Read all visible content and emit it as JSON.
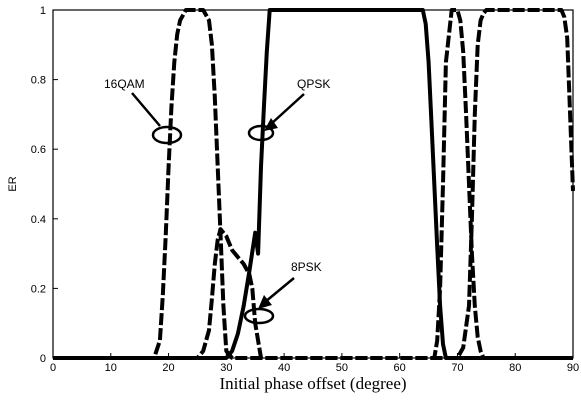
{
  "chart_data": {
    "type": "line",
    "title": "",
    "xlabel": "Initial phase offset (degree)",
    "ylabel": "ER",
    "xlim": [
      0,
      90
    ],
    "ylim": [
      0,
      1
    ],
    "xticks": [
      "0",
      "10",
      "20",
      "30",
      "40",
      "50",
      "60",
      "70",
      "80",
      "90"
    ],
    "yticks": [
      "0",
      "0.2",
      "0.4",
      "0.6",
      "0.8",
      "1"
    ],
    "grid": false,
    "legend": "none",
    "annotations": [
      {
        "text": "16QAM",
        "x": 20,
        "y": 0.65
      },
      {
        "text": "QPSK",
        "x": 36,
        "y": 0.65
      },
      {
        "text": "8PSK",
        "x": 33,
        "y": 0.12
      }
    ],
    "series": [
      {
        "style": "dashed",
        "x": [
          0,
          17.5,
          18.5,
          19,
          19.5,
          20,
          20.5,
          21,
          21.5,
          22,
          23,
          24,
          25,
          26,
          27,
          27.5,
          28,
          28.5,
          29,
          29.5,
          30,
          31,
          32,
          33,
          35,
          40,
          50,
          60,
          63,
          64,
          65,
          65.5,
          66,
          66.5,
          67,
          67.5,
          68,
          69,
          70,
          70.5,
          71,
          71.5,
          72,
          72.5,
          73,
          73.5,
          74,
          74.5,
          75,
          76,
          80,
          85,
          87.5,
          88,
          88.5,
          89,
          89.5,
          90
        ],
        "y": [
          0,
          0,
          0.05,
          0.18,
          0.35,
          0.55,
          0.72,
          0.85,
          0.93,
          0.97,
          1,
          1,
          1,
          1,
          0.97,
          0.9,
          0.75,
          0.55,
          0.35,
          0.15,
          0.02,
          0,
          0,
          0,
          0,
          0,
          0,
          0,
          0,
          0,
          0,
          0,
          0,
          0.05,
          0.2,
          0.5,
          0.85,
          1,
          1,
          0.97,
          0.88,
          0.7,
          0.5,
          0.3,
          0.15,
          0.06,
          0.02,
          0,
          0,
          0,
          0,
          0,
          0,
          0,
          0,
          0,
          0,
          0
        ]
      },
      {
        "style": "dashed",
        "x": [
          0,
          25,
          26,
          27,
          27.5,
          28,
          28.5,
          29,
          29.5,
          30,
          30.5,
          31,
          32,
          33,
          34,
          34.5,
          35,
          36,
          40,
          50,
          60,
          63,
          64,
          64.5,
          65,
          65.5,
          66,
          66.5,
          67,
          67.5,
          68,
          68.5,
          69,
          69.5,
          70,
          71,
          72,
          72.5,
          73,
          73.5,
          74,
          74.5,
          75,
          76,
          80,
          85,
          87,
          88,
          88.5,
          89,
          89.5,
          90
        ],
        "y": [
          0,
          0,
          0.02,
          0.08,
          0.17,
          0.27,
          0.34,
          0.37,
          0.36,
          0.35,
          0.33,
          0.31,
          0.29,
          0.27,
          0.24,
          0.2,
          0.1,
          0,
          0,
          0,
          0,
          0,
          0,
          0,
          0,
          0,
          0,
          0,
          0,
          0,
          0,
          0,
          0,
          0,
          0,
          0.03,
          0.15,
          0.4,
          0.7,
          0.9,
          0.97,
          0.99,
          1,
          1,
          1,
          1,
          1,
          1,
          0.98,
          0.92,
          0.7,
          0.48
        ]
      },
      {
        "style": "solid",
        "x": [
          0,
          30,
          31,
          32,
          33,
          34,
          35,
          35.5,
          36,
          36.5,
          37,
          37.5,
          38,
          40,
          50,
          60,
          64,
          64.5,
          65,
          65.5,
          66,
          66.5,
          67,
          67.5,
          68,
          68.5,
          69,
          90
        ],
        "y": [
          0,
          0,
          0.02,
          0.07,
          0.15,
          0.25,
          0.36,
          0.3,
          0.55,
          0.72,
          0.88,
          1,
          1,
          1,
          1,
          1,
          1,
          0.96,
          0.85,
          0.68,
          0.5,
          0.32,
          0.15,
          0.04,
          0,
          0,
          0,
          0
        ]
      }
    ]
  }
}
